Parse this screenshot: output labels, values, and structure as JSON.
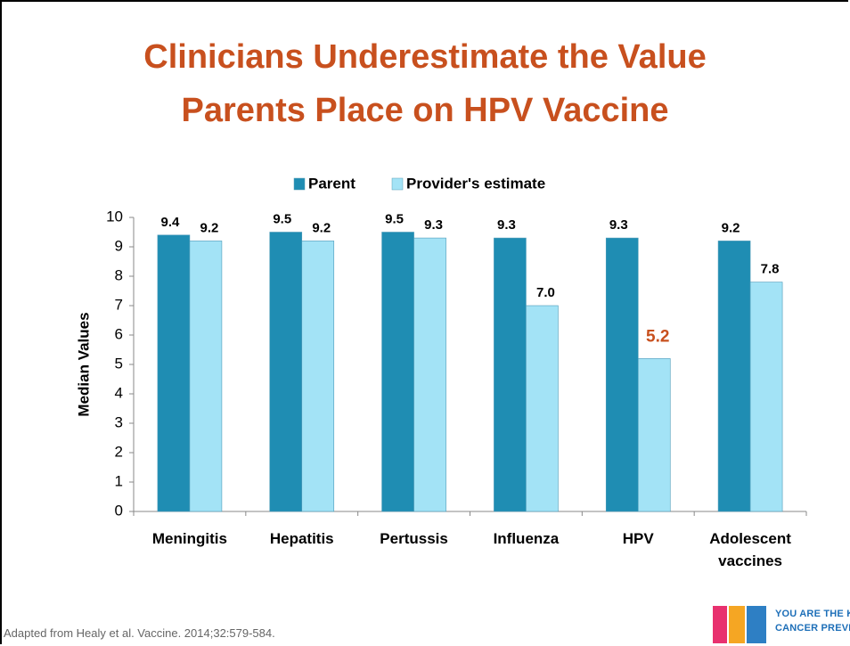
{
  "chart_data": {
    "type": "bar",
    "title": "Clinicians Underestimate the Value\nParents Place on HPV Vaccine",
    "y_label": "Median Values",
    "categories": [
      "Meningitis",
      "Hepatitis",
      "Pertussis",
      "Influenza",
      "HPV",
      "Adolescent\nvaccines"
    ],
    "series": [
      {
        "name": "Parent",
        "color": "#1f8db3",
        "values": [
          9.4,
          9.5,
          9.5,
          9.3,
          9.3,
          9.2
        ],
        "value_labels": [
          "9.4",
          "9.5",
          "9.5",
          "9.3",
          "9.3",
          "9.2"
        ]
      },
      {
        "name": "Provider's estimate",
        "color": "#a3e3f6",
        "values": [
          9.2,
          9.2,
          9.3,
          7.0,
          5.2,
          7.8
        ],
        "value_labels": [
          "9.2",
          "9.2",
          "9.3",
          "7.0",
          "5.2",
          "7.8"
        ]
      }
    ],
    "highlight": {
      "series": 1,
      "index": 4,
      "color": "#c8501e"
    },
    "ylim": [
      0,
      10
    ],
    "yticks": [
      0,
      1,
      2,
      3,
      4,
      5,
      6,
      7,
      8,
      9,
      10
    ],
    "legend": "top"
  },
  "footnote": "Adapted from Healy et al.  Vaccine. 2014;32:579-584.",
  "logo": {
    "line1": "YOU ARE THE KEY TO",
    "line2": "CANCER PREVENTION"
  }
}
